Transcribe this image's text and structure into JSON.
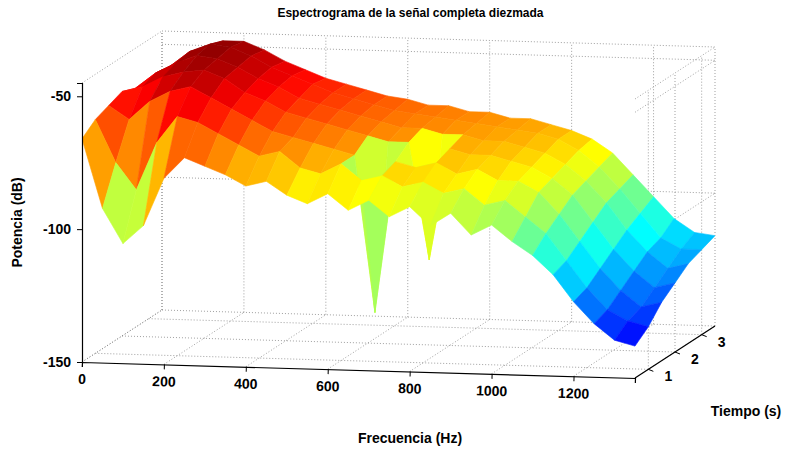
{
  "chart_data": {
    "type": "surface",
    "title": "Espectrograma de la señal completa diezmada",
    "x_label": "Frecuencia (Hz)",
    "y_label": "Tiempo (s)",
    "z_label": "Potencia (dB)",
    "x": [
      0,
      50,
      100,
      150,
      200,
      250,
      300,
      350,
      400,
      450,
      500,
      550,
      600,
      650,
      700,
      750,
      800,
      850,
      900,
      950,
      1000,
      1050,
      1100,
      1150,
      1200,
      1250,
      1300,
      1350
    ],
    "y": [
      0.5,
      1,
      1.5,
      2,
      2.5,
      3,
      3.5
    ],
    "values": [
      [
        -66,
        -92,
        -105,
        -98,
        -80,
        -72,
        -75,
        -78,
        -82,
        -80,
        -85,
        -88,
        -84,
        -90,
        -86,
        -92,
        -88,
        -95,
        -90,
        -98,
        -94,
        -100,
        -105,
        -112,
        -122,
        -130,
        -136,
        -138
      ],
      [
        -62,
        -78,
        -88,
        -70,
        -60,
        -62,
        -66,
        -70,
        -74,
        -72,
        -78,
        -80,
        -76,
        -82,
        -80,
        -84,
        -82,
        -86,
        -84,
        -90,
        -88,
        -94,
        -100,
        -110,
        -120,
        -128,
        -132,
        -134
      ],
      [
        -60,
        -65,
        -58,
        -54,
        -52,
        -56,
        -60,
        -64,
        -68,
        -70,
        -72,
        -74,
        -76,
        -135,
        -78,
        -80,
        -78,
        -82,
        -80,
        -84,
        -84,
        -88,
        -96,
        -106,
        -116,
        -124,
        -130,
        -128
      ],
      [
        -58,
        -56,
        -52,
        -50,
        -49,
        -52,
        -57,
        -60,
        -64,
        -66,
        -68,
        -70,
        -72,
        -74,
        -74,
        -118,
        -76,
        -78,
        -78,
        -80,
        -82,
        -86,
        -92,
        -102,
        -112,
        -120,
        -126,
        -124
      ],
      [
        -60,
        -54,
        -50,
        -47,
        -48,
        -51,
        -55,
        -58,
        -62,
        -64,
        -66,
        -68,
        -70,
        -72,
        -72,
        -74,
        -74,
        -76,
        -76,
        -78,
        -80,
        -84,
        -90,
        -98,
        -108,
        -116,
        -122,
        -120
      ],
      [
        -62,
        -55,
        -49,
        -46,
        -47,
        -50,
        -54,
        -57,
        -60,
        -63,
        -65,
        -67,
        -69,
        -70,
        -71,
        -72,
        -73,
        -74,
        -75,
        -76,
        -78,
        -82,
        -88,
        -96,
        -105,
        -114,
        -118,
        -118
      ],
      [
        -64,
        -56,
        -51,
        -48,
        -48,
        -51,
        -55,
        -58,
        -61,
        -63,
        -65,
        -67,
        -68,
        -70,
        -70,
        -72,
        -72,
        -74,
        -74,
        -76,
        -78,
        -81,
        -86,
        -94,
        -102,
        -110,
        -115,
        -116
      ]
    ],
    "xlim": [
      0,
      1350
    ],
    "ylim": [
      0.5,
      3.5
    ],
    "zlim": [
      -150,
      -45
    ],
    "xticks": [
      0,
      200,
      400,
      600,
      800,
      1000,
      1200
    ],
    "yticks": [
      1,
      2,
      3
    ],
    "zticks": [
      -150,
      -100,
      -50
    ],
    "grid": true
  }
}
